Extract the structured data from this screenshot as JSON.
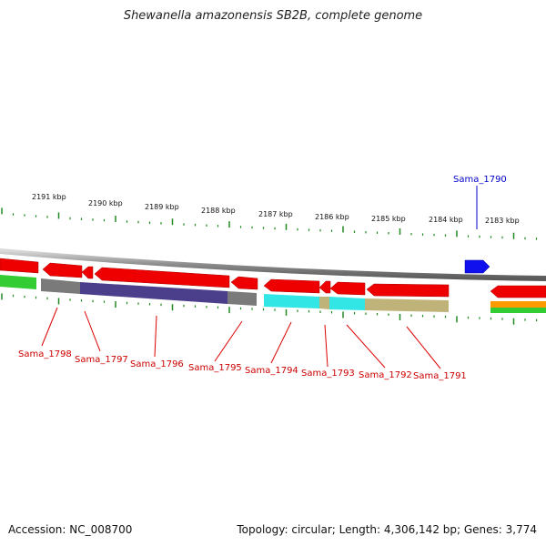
{
  "title": "Shewanella amazonensis SB2B, complete genome",
  "footer": {
    "accession": "Accession: NC_008700",
    "summary": "Topology: circular; Length: 4,306,142 bp; Genes: 3,774"
  },
  "scale_labels": [
    "2191 kbp",
    "2190 kbp",
    "2189 kbp",
    "2188 kbp",
    "2187 kbp",
    "2186 kbp",
    "2185 kbp",
    "2184 kbp",
    "2183 kbp"
  ],
  "genes": {
    "forward": [
      {
        "label": "Sama_1790",
        "color": "#0000ee"
      }
    ],
    "reverse": [
      {
        "label": "Sama_1798",
        "color": "#cc0000"
      },
      {
        "label": "Sama_1797",
        "color": "#cc0000"
      },
      {
        "label": "Sama_1796",
        "color": "#cc0000"
      },
      {
        "label": "Sama_1795",
        "color": "#cc0000"
      },
      {
        "label": "Sama_1794",
        "color": "#cc0000"
      },
      {
        "label": "Sama_1793",
        "color": "#cc0000"
      },
      {
        "label": "Sama_1792",
        "color": "#cc0000"
      },
      {
        "label": "Sama_1791",
        "color": "#cc0000"
      }
    ]
  },
  "colors": {
    "gene_reverse": "#ff0000",
    "gene_forward": "#0000ff",
    "backbone": "#909090",
    "tick": "#228822",
    "cog_gray": "#7a7a7a",
    "cog_purple": "#4b3e8a",
    "cog_cyan": "#33e6e6",
    "cog_tan": "#bfb37a",
    "cog_green": "#33cc33",
    "cog_orange": "#ff9900"
  }
}
